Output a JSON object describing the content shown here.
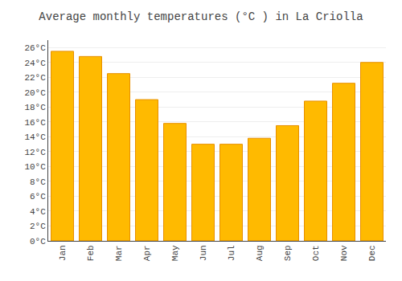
{
  "chart_data": {
    "type": "bar",
    "title": "Average monthly temperatures (°C ) in La Criolla",
    "categories": [
      "Jan",
      "Feb",
      "Mar",
      "Apr",
      "May",
      "Jun",
      "Jul",
      "Aug",
      "Sep",
      "Oct",
      "Nov",
      "Dec"
    ],
    "values": [
      25.5,
      24.8,
      22.5,
      19.0,
      15.8,
      13.0,
      13.0,
      13.8,
      15.5,
      18.8,
      21.2,
      24.0
    ],
    "color": "#FFBA00",
    "ylim": [
      0,
      27
    ],
    "yticks": [
      {
        "value": 0,
        "label": "0°C"
      },
      {
        "value": 2,
        "label": "2°C"
      },
      {
        "value": 4,
        "label": "4°C"
      },
      {
        "value": 6,
        "label": "6°C"
      },
      {
        "value": 8,
        "label": "8°C"
      },
      {
        "value": 10,
        "label": "10°C"
      },
      {
        "value": 12,
        "label": "12°C"
      },
      {
        "value": 14,
        "label": "14°C"
      },
      {
        "value": 16,
        "label": "16°C"
      },
      {
        "value": 18,
        "label": "18°C"
      },
      {
        "value": 20,
        "label": "20°C"
      },
      {
        "value": 22,
        "label": "22°C"
      },
      {
        "value": 24,
        "label": "24°C"
      },
      {
        "value": 26,
        "label": "26°C"
      }
    ],
    "grid": true
  }
}
